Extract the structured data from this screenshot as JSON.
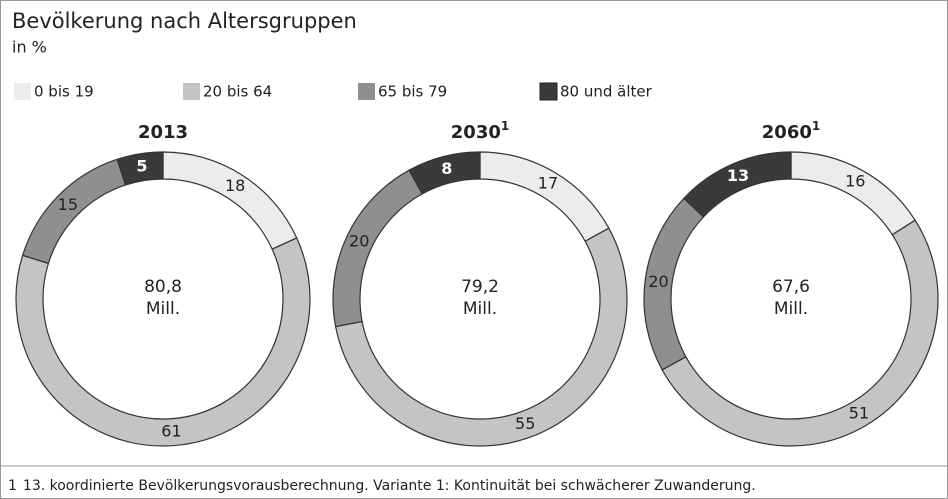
{
  "header": {
    "title": "Bevölkerung nach Altersgruppen",
    "subtitle": "in %"
  },
  "legend": {
    "labels": [
      "0 bis 19",
      "20 bis 64",
      "65 bis 79",
      "80 und älter"
    ],
    "colors": [
      "#ececec",
      "#c4c4c4",
      "#8f8f8f",
      "#3a3a3a"
    ]
  },
  "chart_data": [
    {
      "type": "pie",
      "donut": true,
      "title": "2013",
      "categories": [
        "0 bis 19",
        "20 bis 64",
        "65 bis 79",
        "80 und älter"
      ],
      "values": [
        18,
        61,
        15,
        5
      ],
      "total": 80.8,
      "total_label": "80,8",
      "total_unit": "Mill."
    },
    {
      "type": "pie",
      "donut": true,
      "title": "2030",
      "title_note": "1",
      "categories": [
        "0 bis 19",
        "20 bis 64",
        "65 bis 79",
        "80 und älter"
      ],
      "values": [
        17,
        55,
        20,
        8
      ],
      "total": 79.2,
      "total_label": "79,2",
      "total_unit": "Mill."
    },
    {
      "type": "pie",
      "donut": true,
      "title": "2060",
      "title_note": "1",
      "categories": [
        "0 bis 19",
        "20 bis 64",
        "65 bis 79",
        "80 und älter"
      ],
      "values": [
        16,
        51,
        20,
        13
      ],
      "total": 67.6,
      "total_label": "67,6",
      "total_unit": "Mill."
    }
  ],
  "footnote": {
    "marker": "1",
    "text": "13. koordinierte Bevölkerungsvorausberechnung. Variante 1: Kontinuität bei schwächerer Zuwanderung."
  }
}
